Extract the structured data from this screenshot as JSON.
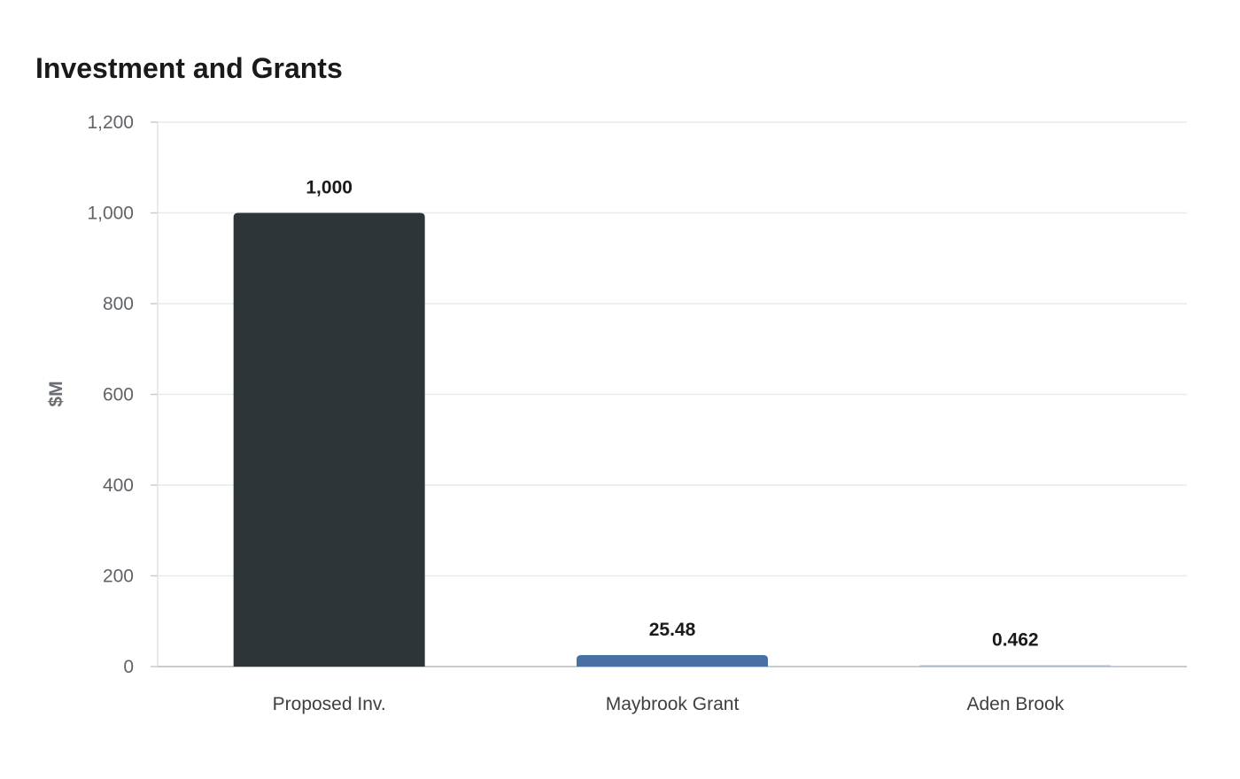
{
  "chart_data": {
    "type": "bar",
    "title": "Investment and Grants",
    "xlabel": "",
    "ylabel": "$M",
    "categories": [
      "Proposed Inv.",
      "Maybrook Grant",
      "Aden Brook"
    ],
    "values": [
      1000,
      25.48,
      0.462
    ],
    "data_labels": [
      "1,000",
      "25.48",
      "0.462"
    ],
    "ylim": [
      0,
      1200
    ],
    "yticks": [
      0,
      200,
      400,
      600,
      800,
      1000,
      1200
    ],
    "ytick_labels": [
      "0",
      "200",
      "400",
      "600",
      "800",
      "1,000",
      "1,200"
    ],
    "bar_colors": [
      "#2e3538",
      "#4a6fa5",
      "#a9b8c9"
    ],
    "grid": true,
    "legend": "none"
  }
}
